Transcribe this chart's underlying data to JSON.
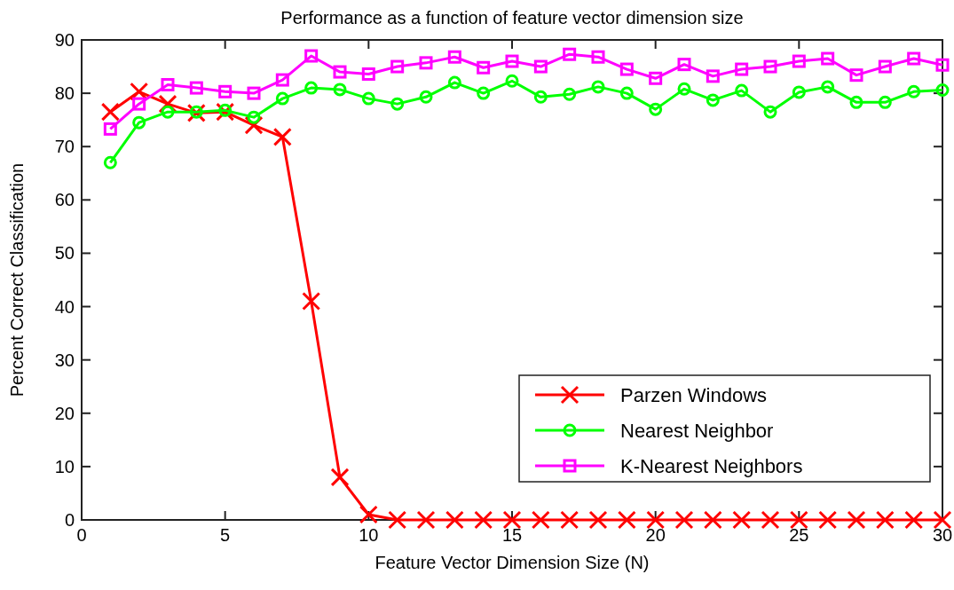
{
  "chart_data": {
    "type": "line",
    "title": "Performance as a function of feature vector dimension size",
    "xlabel": "Feature Vector Dimension Size (N)",
    "ylabel": "Percent Correct Classification",
    "x": [
      1,
      2,
      3,
      4,
      5,
      6,
      7,
      8,
      9,
      10,
      11,
      12,
      13,
      14,
      15,
      16,
      17,
      18,
      19,
      20,
      21,
      22,
      23,
      24,
      25,
      26,
      27,
      28,
      29,
      30
    ],
    "xlim": [
      0,
      30
    ],
    "xticks": [
      0,
      5,
      10,
      15,
      20,
      25,
      30
    ],
    "ylim": [
      0,
      90
    ],
    "yticks": [
      0,
      10,
      20,
      30,
      40,
      50,
      60,
      70,
      80,
      90
    ],
    "grid": false,
    "legend": "bottom right",
    "line_style": "solid",
    "series": [
      {
        "name": "Parzen Windows",
        "color": "#ff0000",
        "marker": "cross",
        "values": [
          76.5,
          80.3,
          78,
          76.3,
          76.5,
          74,
          71.8,
          41,
          8,
          1,
          0,
          0,
          0,
          0,
          0,
          0,
          0,
          0,
          0,
          0,
          0,
          0,
          0,
          0,
          0,
          0,
          0,
          0,
          0,
          0
        ]
      },
      {
        "name": "Nearest Neighbor",
        "color": "#00ff00",
        "marker": "circle",
        "values": [
          67,
          74.5,
          76.5,
          76.5,
          76.8,
          75.5,
          79,
          81,
          80.7,
          79,
          78,
          79.3,
          82,
          80,
          82.3,
          79.3,
          79.8,
          81.2,
          80,
          77,
          80.8,
          78.7,
          80.5,
          76.5,
          80.2,
          81.2,
          78.3,
          78.3,
          80.3,
          80.6
        ]
      },
      {
        "name": "K-Nearest Neighbors",
        "color": "#ff00ff",
        "marker": "square",
        "values": [
          73.3,
          78,
          81.6,
          81,
          80.3,
          80,
          82.5,
          87,
          84,
          83.6,
          85,
          85.7,
          86.8,
          84.8,
          86,
          85,
          87.3,
          86.8,
          84.5,
          82.8,
          85.4,
          83.2,
          84.5,
          85,
          86,
          86.5,
          83.4,
          85,
          86.5,
          85.3
        ]
      }
    ]
  }
}
